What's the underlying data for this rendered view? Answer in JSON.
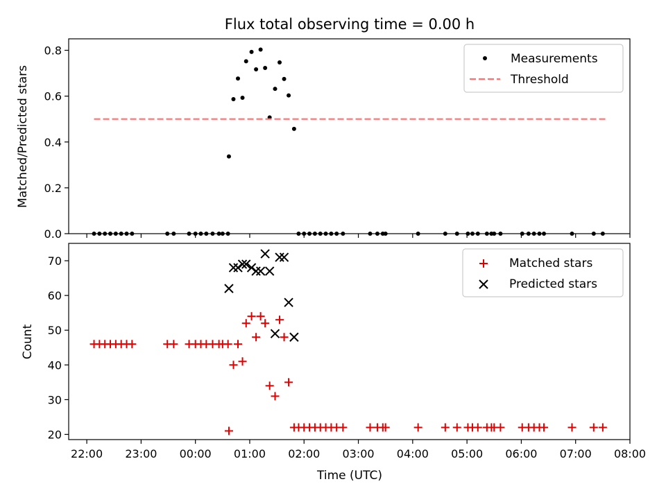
{
  "title": "Flux total observing time = 0.00 h",
  "chart_data": [
    {
      "type": "scatter",
      "ylabel": "Matched/Predicted stars",
      "ylim": [
        0,
        0.85
      ],
      "yticks": [
        "0.0",
        "0.2",
        "0.4",
        "0.6",
        "0.8"
      ],
      "legend_position": "top-right",
      "series": [
        {
          "name": "Measurements",
          "color": "#000000",
          "marker": "dot",
          "points": [
            [
              "22:08",
              0.0
            ],
            [
              "22:14",
              0.0
            ],
            [
              "22:20",
              0.0
            ],
            [
              "22:26",
              0.0
            ],
            [
              "22:32",
              0.0
            ],
            [
              "22:38",
              0.0
            ],
            [
              "22:44",
              0.0
            ],
            [
              "22:50",
              0.0
            ],
            [
              "23:29",
              0.0
            ],
            [
              "23:36",
              0.0
            ],
            [
              "23:53",
              0.0
            ],
            [
              "00:00",
              0.0
            ],
            [
              "00:06",
              0.0
            ],
            [
              "00:12",
              0.0
            ],
            [
              "00:19",
              0.0
            ],
            [
              "00:26",
              0.0
            ],
            [
              "00:30",
              0.0
            ],
            [
              "00:36",
              0.0
            ],
            [
              "00:37",
              0.337
            ],
            [
              "00:42",
              0.587
            ],
            [
              "00:47",
              0.677
            ],
            [
              "00:52",
              0.593
            ],
            [
              "00:56",
              0.752
            ],
            [
              "01:02",
              0.793
            ],
            [
              "01:07",
              0.717
            ],
            [
              "01:12",
              0.803
            ],
            [
              "01:17",
              0.723
            ],
            [
              "01:22",
              0.507
            ],
            [
              "01:28",
              0.632
            ],
            [
              "01:33",
              0.747
            ],
            [
              "01:38",
              0.675
            ],
            [
              "01:43",
              0.603
            ],
            [
              "01:49",
              0.457
            ],
            [
              "01:54",
              0.0
            ],
            [
              "02:00",
              0.0
            ],
            [
              "02:06",
              0.0
            ],
            [
              "02:12",
              0.0
            ],
            [
              "02:18",
              0.0
            ],
            [
              "02:24",
              0.0
            ],
            [
              "02:30",
              0.0
            ],
            [
              "02:36",
              0.0
            ],
            [
              "02:43",
              0.0
            ],
            [
              "03:13",
              0.0
            ],
            [
              "03:21",
              0.0
            ],
            [
              "03:27",
              0.0
            ],
            [
              "03:30",
              0.0
            ],
            [
              "04:06",
              0.0
            ],
            [
              "04:36",
              0.0
            ],
            [
              "04:49",
              0.0
            ],
            [
              "05:01",
              0.0
            ],
            [
              "05:06",
              0.0
            ],
            [
              "05:12",
              0.0
            ],
            [
              "05:22",
              0.0
            ],
            [
              "05:27",
              0.0
            ],
            [
              "05:30",
              0.0
            ],
            [
              "05:37",
              0.0
            ],
            [
              "06:01",
              0.0
            ],
            [
              "06:08",
              0.0
            ],
            [
              "06:14",
              0.0
            ],
            [
              "06:20",
              0.0
            ],
            [
              "06:25",
              0.0
            ],
            [
              "06:56",
              0.0
            ],
            [
              "07:20",
              0.0
            ],
            [
              "07:30",
              0.0
            ]
          ]
        },
        {
          "name": "Threshold",
          "color": "#ff7070",
          "line_style": "dashed",
          "points": [
            [
              "22:08",
              0.5
            ],
            [
              "07:33",
              0.5
            ]
          ]
        }
      ]
    },
    {
      "type": "scatter",
      "xlabel": "Time (UTC)",
      "ylabel": "Count",
      "ylim": [
        18.5,
        75
      ],
      "yticks": [
        "20",
        "30",
        "40",
        "50",
        "60",
        "70"
      ],
      "xrange": [
        "21:40",
        "08:00"
      ],
      "xticks": [
        "22:00",
        "23:00",
        "00:00",
        "01:00",
        "02:00",
        "03:00",
        "04:00",
        "05:00",
        "06:00",
        "07:00",
        "08:00"
      ],
      "legend_position": "top-right",
      "series": [
        {
          "name": "Matched stars",
          "color": "#e00000",
          "marker": "plus",
          "points": [
            [
              "22:08",
              46
            ],
            [
              "22:14",
              46
            ],
            [
              "22:20",
              46
            ],
            [
              "22:26",
              46
            ],
            [
              "22:32",
              46
            ],
            [
              "22:38",
              46
            ],
            [
              "22:44",
              46
            ],
            [
              "22:50",
              46
            ],
            [
              "23:29",
              46
            ],
            [
              "23:36",
              46
            ],
            [
              "23:53",
              46
            ],
            [
              "00:00",
              46
            ],
            [
              "00:06",
              46
            ],
            [
              "00:12",
              46
            ],
            [
              "00:19",
              46
            ],
            [
              "00:26",
              46
            ],
            [
              "00:30",
              46
            ],
            [
              "00:36",
              46
            ],
            [
              "00:37",
              21
            ],
            [
              "00:42",
              40
            ],
            [
              "00:47",
              46
            ],
            [
              "00:52",
              41
            ],
            [
              "00:56",
              52
            ],
            [
              "01:02",
              54
            ],
            [
              "01:07",
              48
            ],
            [
              "01:12",
              54
            ],
            [
              "01:17",
              52
            ],
            [
              "01:22",
              34
            ],
            [
              "01:28",
              31
            ],
            [
              "01:33",
              53
            ],
            [
              "01:38",
              48
            ],
            [
              "01:43",
              35
            ],
            [
              "01:49",
              22
            ],
            [
              "01:54",
              22
            ],
            [
              "02:00",
              22
            ],
            [
              "02:06",
              22
            ],
            [
              "02:12",
              22
            ],
            [
              "02:18",
              22
            ],
            [
              "02:24",
              22
            ],
            [
              "02:30",
              22
            ],
            [
              "02:36",
              22
            ],
            [
              "02:43",
              22
            ],
            [
              "03:13",
              22
            ],
            [
              "03:21",
              22
            ],
            [
              "03:27",
              22
            ],
            [
              "03:30",
              22
            ],
            [
              "04:06",
              22
            ],
            [
              "04:36",
              22
            ],
            [
              "04:49",
              22
            ],
            [
              "05:01",
              22
            ],
            [
              "05:06",
              22
            ],
            [
              "05:12",
              22
            ],
            [
              "05:22",
              22
            ],
            [
              "05:27",
              22
            ],
            [
              "05:30",
              22
            ],
            [
              "05:37",
              22
            ],
            [
              "06:01",
              22
            ],
            [
              "06:08",
              22
            ],
            [
              "06:14",
              22
            ],
            [
              "06:20",
              22
            ],
            [
              "06:25",
              22
            ],
            [
              "06:56",
              22
            ],
            [
              "07:20",
              22
            ],
            [
              "07:30",
              22
            ]
          ]
        },
        {
          "name": "Predicted stars",
          "color": "#000000",
          "marker": "x",
          "points": [
            [
              "00:37",
              62
            ],
            [
              "00:42",
              68
            ],
            [
              "00:47",
              68
            ],
            [
              "00:52",
              69
            ],
            [
              "00:56",
              69
            ],
            [
              "01:02",
              68
            ],
            [
              "01:07",
              67
            ],
            [
              "01:12",
              67
            ],
            [
              "01:17",
              72
            ],
            [
              "01:22",
              67
            ],
            [
              "01:28",
              49
            ],
            [
              "01:33",
              71
            ],
            [
              "01:38",
              71
            ],
            [
              "01:43",
              58
            ],
            [
              "01:49",
              48
            ]
          ]
        }
      ]
    }
  ]
}
